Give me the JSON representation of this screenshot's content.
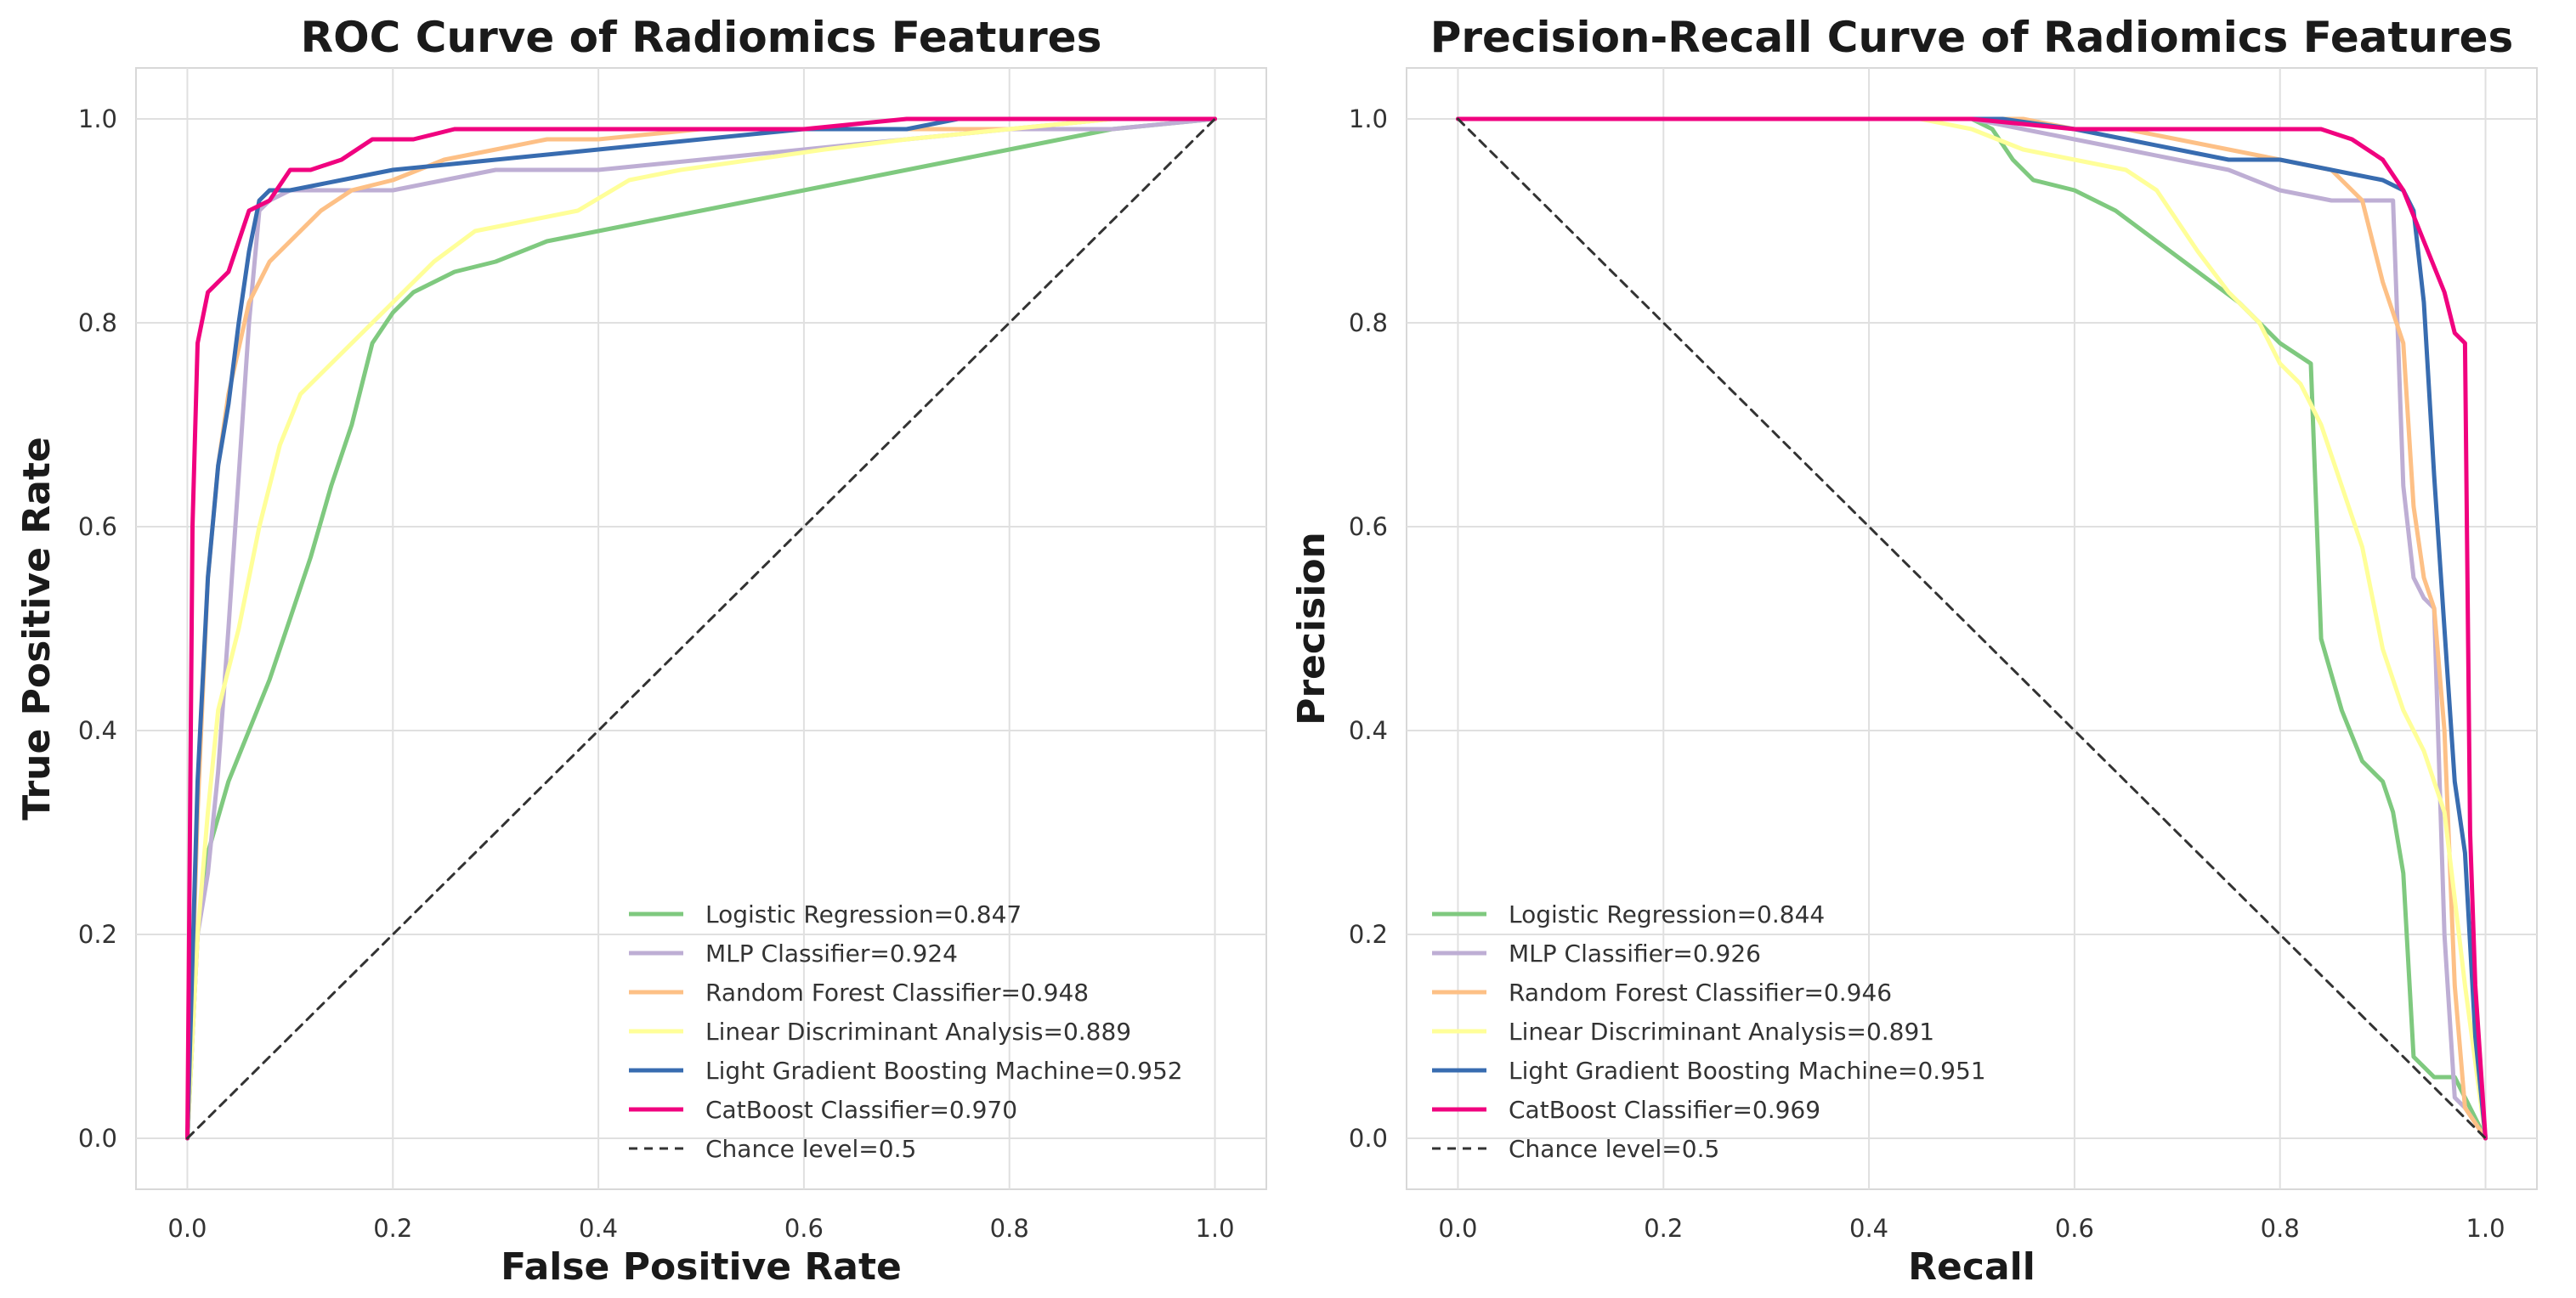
{
  "chart_data": [
    {
      "type": "line",
      "title": "ROC Curve of Radiomics Features",
      "xlabel": "False Positive Rate",
      "ylabel": "True Positive Rate",
      "xlim": [
        -0.05,
        1.05
      ],
      "ylim": [
        -0.05,
        1.05
      ],
      "xticks": [
        "0.0",
        "0.2",
        "0.4",
        "0.6",
        "0.8",
        "1.0"
      ],
      "yticks": [
        "0.0",
        "0.2",
        "0.4",
        "0.6",
        "0.8",
        "1.0"
      ],
      "grid": true,
      "legend_position": "lower-right",
      "series": [
        {
          "name": "Logistic Regression=0.847",
          "color": "#7fc97f",
          "x": [
            0.0,
            0.01,
            0.02,
            0.04,
            0.06,
            0.08,
            0.1,
            0.12,
            0.14,
            0.16,
            0.18,
            0.2,
            0.22,
            0.26,
            0.3,
            0.35,
            0.4,
            0.45,
            0.5,
            0.55,
            0.6,
            0.65,
            0.7,
            0.75,
            0.8,
            0.85,
            0.9,
            1.0
          ],
          "y": [
            0.0,
            0.2,
            0.28,
            0.35,
            0.4,
            0.45,
            0.51,
            0.57,
            0.64,
            0.7,
            0.78,
            0.81,
            0.83,
            0.85,
            0.86,
            0.88,
            0.89,
            0.9,
            0.91,
            0.92,
            0.93,
            0.94,
            0.95,
            0.96,
            0.97,
            0.98,
            0.99,
            1.0
          ]
        },
        {
          "name": "MLP Classifier=0.924",
          "color": "#beaed4",
          "x": [
            0.0,
            0.01,
            0.02,
            0.03,
            0.04,
            0.05,
            0.06,
            0.07,
            0.08,
            0.1,
            0.15,
            0.2,
            0.25,
            0.3,
            0.4,
            0.5,
            0.6,
            0.7,
            0.8,
            0.9,
            1.0
          ],
          "y": [
            0.0,
            0.2,
            0.26,
            0.36,
            0.5,
            0.65,
            0.8,
            0.91,
            0.92,
            0.93,
            0.93,
            0.93,
            0.94,
            0.95,
            0.95,
            0.96,
            0.97,
            0.98,
            0.99,
            0.99,
            1.0
          ]
        },
        {
          "name": "Random Forest Classifier=0.948",
          "color": "#fdc086",
          "x": [
            0.0,
            0.01,
            0.02,
            0.03,
            0.04,
            0.06,
            0.08,
            0.1,
            0.13,
            0.16,
            0.2,
            0.25,
            0.3,
            0.35,
            0.4,
            0.5,
            0.6,
            0.7,
            0.8,
            0.9,
            1.0
          ],
          "y": [
            0.0,
            0.32,
            0.55,
            0.66,
            0.73,
            0.82,
            0.86,
            0.88,
            0.91,
            0.93,
            0.94,
            0.96,
            0.97,
            0.98,
            0.98,
            0.99,
            0.99,
            0.99,
            0.99,
            1.0,
            1.0
          ]
        },
        {
          "name": "Linear Discriminant Analysis=0.889",
          "color": "#ffff99",
          "x": [
            0.0,
            0.01,
            0.02,
            0.03,
            0.05,
            0.07,
            0.09,
            0.11,
            0.14,
            0.17,
            0.2,
            0.24,
            0.28,
            0.33,
            0.38,
            0.43,
            0.48,
            0.55,
            0.62,
            0.7,
            0.8,
            0.9,
            1.0
          ],
          "y": [
            0.0,
            0.2,
            0.32,
            0.42,
            0.5,
            0.6,
            0.68,
            0.73,
            0.76,
            0.79,
            0.82,
            0.86,
            0.89,
            0.9,
            0.91,
            0.94,
            0.95,
            0.96,
            0.97,
            0.98,
            0.99,
            1.0,
            1.0
          ]
        },
        {
          "name": "Light Gradient Boosting Machine=0.952",
          "color": "#386cb0",
          "x": [
            0.0,
            0.01,
            0.02,
            0.03,
            0.04,
            0.05,
            0.06,
            0.07,
            0.08,
            0.1,
            0.15,
            0.2,
            0.3,
            0.4,
            0.5,
            0.6,
            0.7,
            0.75,
            0.8,
            0.9,
            1.0
          ],
          "y": [
            0.0,
            0.35,
            0.55,
            0.66,
            0.72,
            0.8,
            0.87,
            0.92,
            0.93,
            0.93,
            0.94,
            0.95,
            0.96,
            0.97,
            0.98,
            0.99,
            0.99,
            1.0,
            1.0,
            1.0,
            1.0
          ]
        },
        {
          "name": "CatBoost Classifier=0.970",
          "color": "#f0027f",
          "x": [
            0.0,
            0.005,
            0.01,
            0.02,
            0.03,
            0.04,
            0.05,
            0.06,
            0.08,
            0.1,
            0.12,
            0.15,
            0.18,
            0.22,
            0.26,
            0.3,
            0.4,
            0.5,
            0.6,
            0.7,
            0.8,
            0.9,
            1.0
          ],
          "y": [
            0.0,
            0.6,
            0.78,
            0.83,
            0.84,
            0.85,
            0.88,
            0.91,
            0.92,
            0.95,
            0.95,
            0.96,
            0.98,
            0.98,
            0.99,
            0.99,
            0.99,
            0.99,
            0.99,
            1.0,
            1.0,
            1.0,
            1.0
          ]
        },
        {
          "name": "Chance level=0.5",
          "color": "#333333",
          "dashed": true,
          "x": [
            0.0,
            1.0
          ],
          "y": [
            0.0,
            1.0
          ]
        }
      ]
    },
    {
      "type": "line",
      "title": "Precision-Recall Curve of Radiomics Features",
      "xlabel": "Recall",
      "ylabel": "Precision",
      "xlim": [
        -0.05,
        1.05
      ],
      "ylim": [
        -0.05,
        1.05
      ],
      "xticks": [
        "0.0",
        "0.2",
        "0.4",
        "0.6",
        "0.8",
        "1.0"
      ],
      "yticks": [
        "0.0",
        "0.2",
        "0.4",
        "0.6",
        "0.8",
        "1.0"
      ],
      "grid": true,
      "legend_position": "lower-left",
      "series": [
        {
          "name": "Logistic Regression=0.844",
          "color": "#7fc97f",
          "x": [
            0.0,
            0.5,
            0.52,
            0.54,
            0.56,
            0.6,
            0.64,
            0.68,
            0.72,
            0.76,
            0.78,
            0.8,
            0.83,
            0.84,
            0.86,
            0.88,
            0.9,
            0.91,
            0.92,
            0.93,
            0.95,
            0.97,
            1.0
          ],
          "y": [
            1.0,
            1.0,
            0.99,
            0.96,
            0.94,
            0.93,
            0.91,
            0.88,
            0.85,
            0.82,
            0.8,
            0.78,
            0.76,
            0.49,
            0.42,
            0.37,
            0.35,
            0.32,
            0.26,
            0.08,
            0.06,
            0.06,
            0.0
          ]
        },
        {
          "name": "MLP Classifier=0.926",
          "color": "#beaed4",
          "x": [
            0.0,
            0.5,
            0.55,
            0.6,
            0.65,
            0.7,
            0.75,
            0.8,
            0.85,
            0.89,
            0.91,
            0.92,
            0.93,
            0.94,
            0.95,
            0.96,
            0.97,
            0.98,
            1.0
          ],
          "y": [
            1.0,
            1.0,
            0.99,
            0.98,
            0.97,
            0.96,
            0.95,
            0.93,
            0.92,
            0.92,
            0.92,
            0.64,
            0.55,
            0.53,
            0.52,
            0.2,
            0.04,
            0.03,
            0.0
          ]
        },
        {
          "name": "Random Forest Classifier=0.946",
          "color": "#fdc086",
          "x": [
            0.0,
            0.5,
            0.55,
            0.6,
            0.65,
            0.7,
            0.75,
            0.8,
            0.85,
            0.88,
            0.9,
            0.92,
            0.93,
            0.94,
            0.95,
            0.96,
            0.97,
            0.98,
            1.0
          ],
          "y": [
            1.0,
            1.0,
            1.0,
            0.99,
            0.99,
            0.98,
            0.97,
            0.96,
            0.95,
            0.92,
            0.84,
            0.78,
            0.62,
            0.55,
            0.52,
            0.4,
            0.15,
            0.03,
            0.0
          ]
        },
        {
          "name": "Linear Discriminant Analysis=0.891",
          "color": "#ffff99",
          "x": [
            0.0,
            0.45,
            0.5,
            0.55,
            0.6,
            0.65,
            0.68,
            0.7,
            0.72,
            0.75,
            0.78,
            0.8,
            0.82,
            0.84,
            0.86,
            0.88,
            0.9,
            0.92,
            0.94,
            0.96,
            0.98,
            1.0
          ],
          "y": [
            1.0,
            1.0,
            0.99,
            0.97,
            0.96,
            0.95,
            0.93,
            0.9,
            0.87,
            0.83,
            0.8,
            0.76,
            0.74,
            0.7,
            0.64,
            0.58,
            0.48,
            0.42,
            0.38,
            0.32,
            0.15,
            0.0
          ]
        },
        {
          "name": "Light Gradient Boosting Machine=0.951",
          "color": "#386cb0",
          "x": [
            0.0,
            0.53,
            0.6,
            0.65,
            0.7,
            0.75,
            0.8,
            0.85,
            0.9,
            0.92,
            0.93,
            0.94,
            0.95,
            0.96,
            0.97,
            0.98,
            0.99,
            1.0
          ],
          "y": [
            1.0,
            1.0,
            0.99,
            0.98,
            0.97,
            0.96,
            0.96,
            0.95,
            0.94,
            0.93,
            0.91,
            0.82,
            0.65,
            0.5,
            0.35,
            0.28,
            0.1,
            0.0
          ]
        },
        {
          "name": "CatBoost Classifier=0.969",
          "color": "#f0027f",
          "x": [
            0.0,
            0.5,
            0.6,
            0.7,
            0.8,
            0.84,
            0.87,
            0.9,
            0.92,
            0.94,
            0.96,
            0.97,
            0.98,
            0.985,
            0.99,
            1.0
          ],
          "y": [
            1.0,
            1.0,
            0.99,
            0.99,
            0.99,
            0.99,
            0.98,
            0.96,
            0.93,
            0.88,
            0.83,
            0.79,
            0.78,
            0.3,
            0.15,
            0.0
          ]
        },
        {
          "name": "Chance level=0.5",
          "color": "#333333",
          "dashed": true,
          "x": [
            0.0,
            1.0
          ],
          "y": [
            1.0,
            0.0
          ]
        }
      ]
    }
  ]
}
